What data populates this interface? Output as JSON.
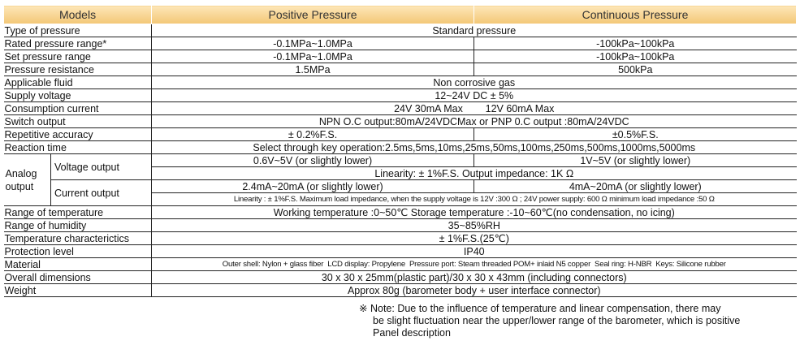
{
  "header": {
    "models": "Models",
    "positive": "Positive Pressure",
    "continuous": "Continuous Pressure"
  },
  "rows": {
    "type": {
      "label": "Type of pressure",
      "value": "Standard pressure"
    },
    "rated": {
      "label": "Rated pressure range*",
      "positive": "-0.1MPa~1.0MPa",
      "continuous": "-100kPa~100kPa"
    },
    "set": {
      "label": "Set pressure range",
      "positive": "-0.1MPa~1.0MPa",
      "continuous": "-100kPa~100kPa"
    },
    "resistance": {
      "label": "Pressure resistance",
      "positive": "1.5MPa",
      "continuous": "500kPa"
    },
    "fluid": {
      "label": "Applicable fluid",
      "value": "Non corrosive gas"
    },
    "voltage": {
      "label": "Supply voltage",
      "value": "12~24V DC ± 5%"
    },
    "consumption": {
      "label": "Consumption current",
      "value": "24V 30mA Max        12V 60mA Max"
    },
    "switch": {
      "label": "Switch output",
      "value": "NPN O.C output:80mA/24VDCMax or PNP 0.C output :80mA/24VDC"
    },
    "repetitive": {
      "label": "Repetitive accuracy",
      "positive": "± 0.2%F.S.",
      "continuous": "±0.5%F.S."
    },
    "reaction": {
      "label": "Reaction time",
      "value": "Select through key operation:2.5ms,5ms,10ms,25ms,50ms,100ms,250ms,500ms,1000ms,5000ms"
    },
    "analog": {
      "label": "Analog output",
      "voltage_label": "Voltage output",
      "voltage_positive": "0.6V~5V (or slightly lower)",
      "voltage_continuous": "1V~5V (or slightly lower)",
      "voltage_linearity": "Linearity: ± 1%F.S. Output impedance: 1K Ω",
      "current_label": "Current output",
      "current_positive": "2.4mA~20mA (or slightly lower)",
      "current_continuous": "4mA~20mA (or slightly lower)",
      "current_linearity": "Linearity : ± 1%F.S. Maximum load impedance, when the supply voltage is 12V :300 Ω ; 24V power supply: 600 Ω minimum load impedance :50 Ω"
    },
    "temperature": {
      "label": "Range of temperature",
      "value": "Working temperature :0~50℃ Storage temperature :-10~60℃(no condensation, no icing)"
    },
    "humidity": {
      "label": "Range of humidity",
      "value": "35~85%RH"
    },
    "temp_char": {
      "label": "Temperature characterictics",
      "value": "± 1%F.S.(25℃)"
    },
    "protection": {
      "label": "Protection level",
      "value": "IP40"
    },
    "material": {
      "label": "Material",
      "value": "Outer shell: Nylon + glass fiber  LCD display: Propylene  Pressure port: Steam threaded POM+ inlaid N5 copper  Seal ring: H-NBR  Keys: Silicone rubber"
    },
    "dimensions": {
      "label": "Overall dimensions",
      "value": "30 x 30 x 25mm(plastic part)/30 x 30 x 43mm (including connectors)"
    },
    "weight": {
      "label": "Weight",
      "value": "Approx 80g (barometer body + user interface connector)"
    }
  },
  "note": {
    "mark": "※",
    "line1": "Note: Due to the influence of temperature and linear compensation, there may",
    "line2": "be slight fluctuation near the upper/lower range of the barometer, which is positive",
    "line3": "Panel description"
  }
}
